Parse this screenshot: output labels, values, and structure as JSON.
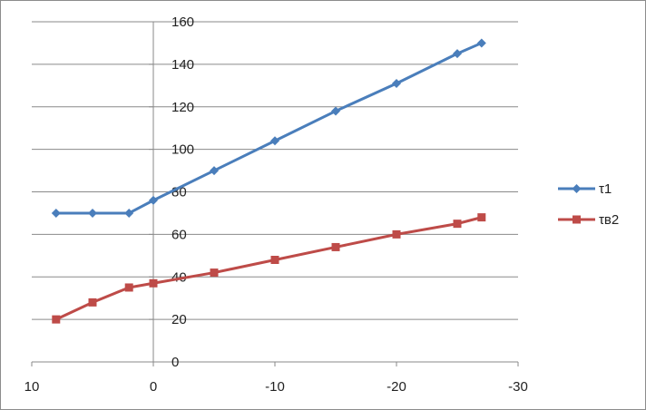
{
  "chart_data": {
    "type": "line",
    "title": "",
    "xlabel": "",
    "ylabel": "",
    "x_reversed": true,
    "xlim": [
      10,
      -30
    ],
    "ylim": [
      0,
      160
    ],
    "x_ticks": [
      10,
      0,
      -10,
      -20,
      -30
    ],
    "y_ticks": [
      0,
      20,
      40,
      60,
      80,
      100,
      120,
      140,
      160
    ],
    "x_tick_labels": [
      "10",
      "0",
      "-10",
      "-20",
      "-30"
    ],
    "y_tick_labels": [
      "0",
      "20",
      "40",
      "60",
      "80",
      "100",
      "120",
      "140",
      "160"
    ],
    "grid": "horizontal",
    "legend_position": "right",
    "series": [
      {
        "name": "τ1",
        "color": "#4a7ebb",
        "marker": "diamond",
        "x": [
          8,
          5,
          2,
          0,
          -5,
          -10,
          -15,
          -20,
          -25,
          -27
        ],
        "y": [
          70,
          70,
          70,
          76,
          90,
          104,
          118,
          131,
          145,
          150
        ]
      },
      {
        "name": "τв2",
        "color": "#be4b48",
        "marker": "square",
        "x": [
          8,
          5,
          2,
          0,
          -5,
          -10,
          -15,
          -20,
          -25,
          -27
        ],
        "y": [
          20,
          28,
          35,
          37,
          42,
          48,
          54,
          60,
          65,
          68
        ]
      }
    ]
  }
}
